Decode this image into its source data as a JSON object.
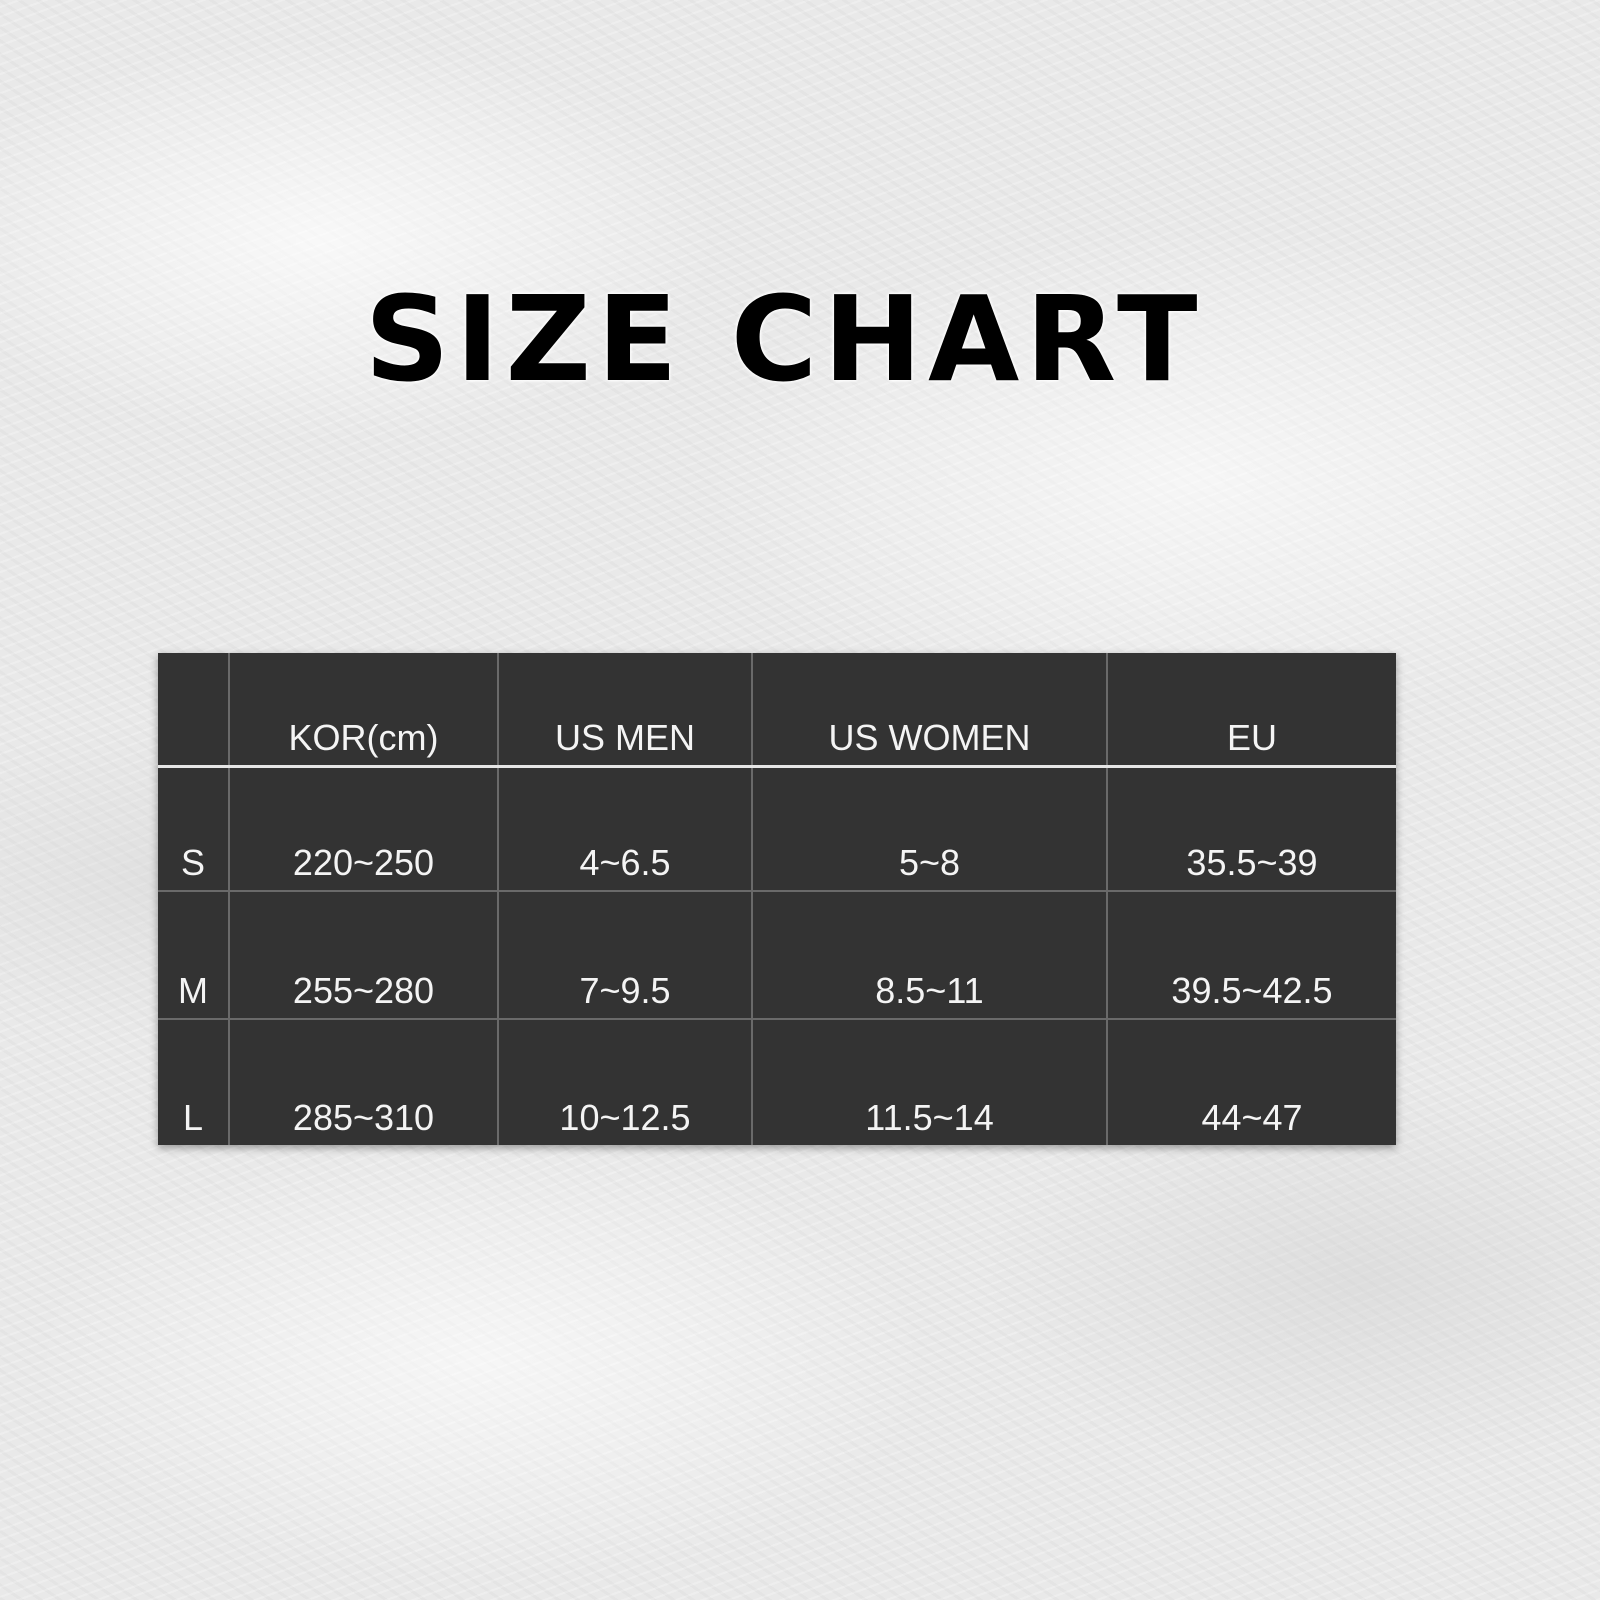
{
  "title": "SIZE CHART",
  "table": {
    "headers": [
      "",
      "KOR(cm)",
      "US MEN",
      "US WOMEN",
      "EU"
    ],
    "rows": [
      [
        "S",
        "220~250",
        "4~6.5",
        "5~8",
        "35.5~39"
      ],
      [
        "M",
        "255~280",
        "7~9.5",
        "8.5~11",
        "39.5~42.5"
      ],
      [
        "L",
        "285~310",
        "10~12.5",
        "11.5~14",
        "44~47"
      ]
    ]
  },
  "colors": {
    "table_bg": "#333333",
    "text": "#f4f4f4",
    "title": "#000000"
  }
}
